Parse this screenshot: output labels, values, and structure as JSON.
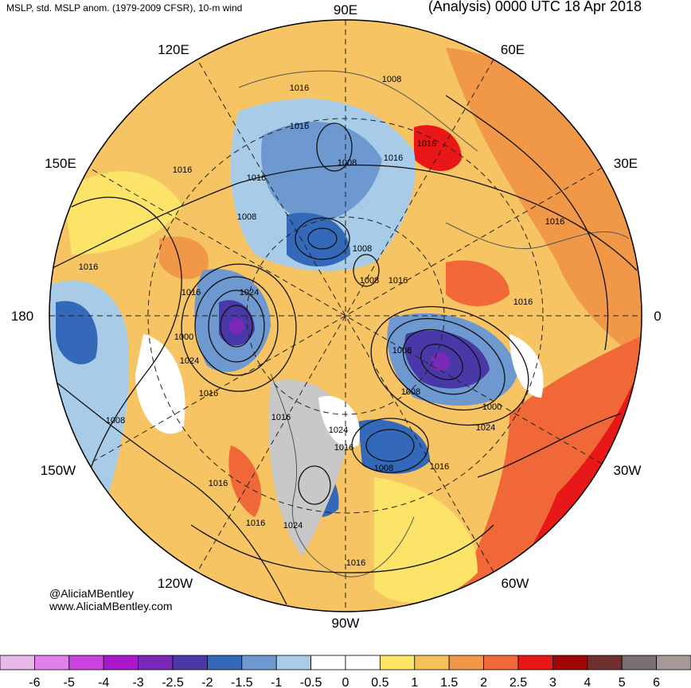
{
  "header": {
    "left": "MSLP, std. MSLP anom. (1979-2009 CFSR), 10-m wind",
    "right": "(Analysis) 0000 UTC 18 Apr 2018"
  },
  "credits": {
    "handle": "@AliciaMBentley",
    "website": "www.AliciaMBentley.com"
  },
  "longitude_labels": [
    "90E",
    "60E",
    "30E",
    "0",
    "30W",
    "60W",
    "90W",
    "120W",
    "150W",
    "180",
    "150E",
    "120E"
  ],
  "isobar_labels": [
    "1008",
    "1016",
    "1016",
    "1008",
    "1016",
    "1016",
    "1016",
    "1008",
    "1016",
    "1016",
    "1008",
    "1008",
    "1016",
    "1016",
    "1024",
    "1000",
    "1024",
    "1016",
    "1008",
    "1008",
    "1000",
    "1016",
    "1024",
    "1016",
    "1016",
    "1024",
    "1016",
    "1008",
    "1016",
    "1024",
    "1016",
    "1008",
    "1016",
    "1016"
  ],
  "colorbar": {
    "ticks": [
      "-6",
      "-5",
      "-4",
      "-3",
      "-2.5",
      "-2",
      "-1.5",
      "-1",
      "-0.5",
      "0",
      "0.5",
      "1",
      "1.5",
      "2",
      "2.5",
      "3",
      "4",
      "5",
      "6"
    ],
    "colors": [
      "#e8b8e8",
      "#e080e8",
      "#cc44dd",
      "#aa18cc",
      "#7a28b8",
      "#4838a8",
      "#3468b8",
      "#6e98d0",
      "#a8cce8",
      "#ffffff",
      "#ffffff",
      "#fce468",
      "#f4c058",
      "#f09848",
      "#f06838",
      "#e81818",
      "#a00808",
      "#703030",
      "#787070",
      "#a89898"
    ]
  }
}
